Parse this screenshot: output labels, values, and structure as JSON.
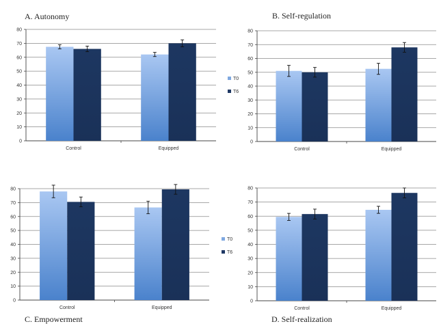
{
  "figure": {
    "legend": [
      {
        "key": "T0",
        "label": "T0",
        "color": "#8db3e8"
      },
      {
        "key": "T6",
        "label": "T6",
        "color": "#1f3864"
      }
    ]
  },
  "chart_data": [
    {
      "type": "bar",
      "title": "A. Autonomy",
      "categories": [
        "Control",
        "Equipped"
      ],
      "ylim": [
        0,
        80
      ],
      "yticks": [
        0,
        10,
        20,
        30,
        40,
        50,
        60,
        70,
        80
      ],
      "grid": true,
      "series": [
        {
          "name": "T0",
          "values": [
            67.5,
            62
          ],
          "errors": [
            1.5,
            1.5
          ]
        },
        {
          "name": "T6",
          "values": [
            66,
            70
          ],
          "errors": [
            2,
            2.5
          ]
        }
      ]
    },
    {
      "type": "bar",
      "title": "B. Self-regulation",
      "categories": [
        "Control",
        "Equipped"
      ],
      "ylim": [
        0,
        80
      ],
      "yticks": [
        0,
        10,
        20,
        30,
        40,
        50,
        60,
        70,
        80
      ],
      "grid": true,
      "series": [
        {
          "name": "T0",
          "values": [
            51,
            52.5
          ],
          "errors": [
            4,
            4
          ]
        },
        {
          "name": "T6",
          "values": [
            50,
            68
          ],
          "errors": [
            3.5,
            3.5
          ]
        }
      ]
    },
    {
      "type": "bar",
      "title": "C. Empowerment",
      "categories": [
        "Control",
        "Equipped"
      ],
      "ylim": [
        0,
        80
      ],
      "yticks": [
        0,
        10,
        20,
        30,
        40,
        50,
        60,
        70,
        80
      ],
      "grid": true,
      "series": [
        {
          "name": "T0",
          "values": [
            78,
            66.5
          ],
          "errors": [
            4.5,
            4.5
          ]
        },
        {
          "name": "T6",
          "values": [
            70.5,
            79.5
          ],
          "errors": [
            3.5,
            3.5
          ]
        }
      ]
    },
    {
      "type": "bar",
      "title": "D. Self-realization",
      "categories": [
        "Control",
        "Equipped"
      ],
      "ylim": [
        0,
        80
      ],
      "yticks": [
        0,
        10,
        20,
        30,
        40,
        50,
        60,
        70,
        80
      ],
      "grid": true,
      "series": [
        {
          "name": "T0",
          "values": [
            59.5,
            64.5
          ],
          "errors": [
            2.5,
            2.5
          ]
        },
        {
          "name": "T6",
          "values": [
            61.5,
            76.5
          ],
          "errors": [
            3.5,
            3.5
          ]
        }
      ]
    }
  ]
}
